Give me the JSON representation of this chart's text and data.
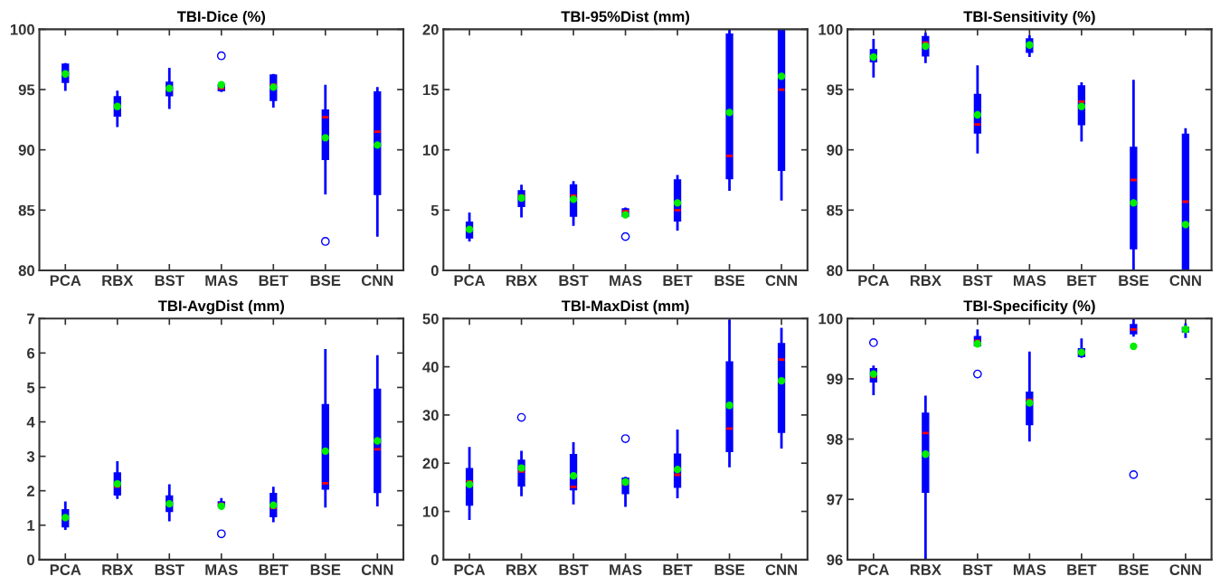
{
  "chart_data": [
    {
      "type": "box",
      "title": "TBI-Dice (%)",
      "categories": [
        "PCA",
        "RBX",
        "BST",
        "MAS",
        "BET",
        "BSE",
        "CNN"
      ],
      "ylim": [
        80,
        100
      ],
      "yticks": [
        80,
        85,
        90,
        95,
        100
      ],
      "grid": false,
      "legend": false,
      "series": [
        {
          "color": "#0000ff",
          "boxes": [
            {
              "low": 95.0,
              "q1": 95.6,
              "median": 96.4,
              "q3": 97.1,
              "high": 97.1,
              "mean": 96.3
            },
            {
              "low": 92.0,
              "q1": 92.8,
              "median": 93.7,
              "q3": 94.4,
              "high": 94.8,
              "mean": 93.6
            },
            {
              "low": 93.5,
              "q1": 94.5,
              "median": 95.0,
              "q3": 95.6,
              "high": 96.7,
              "mean": 95.1
            },
            {
              "low": 94.9,
              "q1": 94.9,
              "median": 95.1,
              "q3": 95.4,
              "high": 95.4,
              "mean": 95.4,
              "outliers": [
                97.8
              ]
            },
            {
              "low": 93.6,
              "q1": 94.1,
              "median": 95.4,
              "q3": 96.2,
              "high": 96.2,
              "mean": 95.2
            },
            {
              "low": 86.4,
              "q1": 89.2,
              "median": 92.7,
              "q3": 93.3,
              "high": 95.3,
              "mean": 91.0,
              "outliers": [
                82.4
              ]
            },
            {
              "low": 82.9,
              "q1": 86.3,
              "median": 91.5,
              "q3": 94.8,
              "high": 95.1,
              "mean": 90.4
            }
          ]
        }
      ]
    },
    {
      "type": "box",
      "title": "TBI-95%Dist (mm)",
      "categories": [
        "PCA",
        "RBX",
        "BST",
        "MAS",
        "BET",
        "BSE",
        "CNN"
      ],
      "ylim": [
        0,
        20
      ],
      "yticks": [
        0,
        5,
        10,
        15,
        20
      ],
      "grid": false,
      "legend": false,
      "series": [
        {
          "color": "#0000ff",
          "boxes": [
            {
              "low": 2.5,
              "q1": 2.7,
              "median": 3.4,
              "q3": 4.0,
              "high": 4.7,
              "mean": 3.4
            },
            {
              "low": 4.5,
              "q1": 5.3,
              "median": 6.2,
              "q3": 6.6,
              "high": 7.0,
              "mean": 6.0
            },
            {
              "low": 3.8,
              "q1": 4.5,
              "median": 6.2,
              "q3": 7.1,
              "high": 7.3,
              "mean": 5.9
            },
            {
              "low": 4.5,
              "q1": 4.5,
              "median": 4.9,
              "q3": 5.1,
              "high": 5.1,
              "mean": 4.6,
              "outliers": [
                2.8
              ]
            },
            {
              "low": 3.4,
              "q1": 4.1,
              "median": 5.0,
              "q3": 7.5,
              "high": 7.8,
              "mean": 5.6
            },
            {
              "low": 6.7,
              "q1": 7.6,
              "median": 9.5,
              "q3": 19.6,
              "high": 20,
              "mean": 13.1
            },
            {
              "low": 5.9,
              "q1": 8.3,
              "median": 15.0,
              "q3": 20,
              "high": 20,
              "mean": 16.1
            }
          ]
        }
      ]
    },
    {
      "type": "box",
      "title": "TBI-Sensitivity (%)",
      "categories": [
        "PCA",
        "RBX",
        "BST",
        "MAS",
        "BET",
        "BSE",
        "CNN"
      ],
      "ylim": [
        80,
        100
      ],
      "yticks": [
        80,
        85,
        90,
        95,
        100
      ],
      "grid": false,
      "legend": false,
      "series": [
        {
          "color": "#0000ff",
          "boxes": [
            {
              "low": 96.1,
              "q1": 97.3,
              "median": 97.8,
              "q3": 98.3,
              "high": 99.1,
              "mean": 97.7
            },
            {
              "low": 97.3,
              "q1": 97.8,
              "median": 98.9,
              "q3": 99.4,
              "high": 99.6,
              "mean": 98.6
            },
            {
              "low": 89.8,
              "q1": 91.4,
              "median": 92.1,
              "q3": 94.6,
              "high": 96.9,
              "mean": 92.9
            },
            {
              "low": 97.8,
              "q1": 98.1,
              "median": 98.7,
              "q3": 99.2,
              "high": 99.4,
              "mean": 98.7
            },
            {
              "low": 90.8,
              "q1": 92.1,
              "median": 94.0,
              "q3": 95.3,
              "high": 95.5,
              "mean": 93.6
            },
            {
              "low": 80,
              "q1": 81.8,
              "median": 87.5,
              "q3": 90.2,
              "high": 95.7,
              "mean": 85.6
            },
            {
              "low": 80,
              "q1": 80,
              "median": 85.7,
              "q3": 91.3,
              "high": 91.7,
              "mean": 83.8
            }
          ]
        }
      ]
    },
    {
      "type": "box",
      "title": "TBI-AvgDist (mm)",
      "categories": [
        "PCA",
        "RBX",
        "BST",
        "MAS",
        "BET",
        "BSE",
        "CNN"
      ],
      "ylim": [
        0,
        7
      ],
      "yticks": [
        0,
        1,
        2,
        3,
        4,
        5,
        6,
        7
      ],
      "grid": false,
      "legend": false,
      "series": [
        {
          "color": "#0000ff",
          "boxes": [
            {
              "low": 0.9,
              "q1": 0.95,
              "median": 1.2,
              "q3": 1.45,
              "high": 1.65,
              "mean": 1.22
            },
            {
              "low": 1.8,
              "q1": 1.88,
              "median": 2.12,
              "q3": 2.52,
              "high": 2.82,
              "mean": 2.2
            },
            {
              "low": 1.15,
              "q1": 1.4,
              "median": 1.6,
              "q3": 1.85,
              "high": 2.15,
              "mean": 1.62
            },
            {
              "low": 1.55,
              "q1": 1.55,
              "median": 1.62,
              "q3": 1.68,
              "high": 1.75,
              "mean": 1.55,
              "outliers": [
                0.75
              ]
            },
            {
              "low": 1.12,
              "q1": 1.25,
              "median": 1.5,
              "q3": 1.92,
              "high": 2.08,
              "mean": 1.58
            },
            {
              "low": 1.55,
              "q1": 2.05,
              "median": 2.22,
              "q3": 4.5,
              "high": 6.08,
              "mean": 3.15
            },
            {
              "low": 1.58,
              "q1": 1.95,
              "median": 3.2,
              "q3": 4.95,
              "high": 5.9,
              "mean": 3.45
            }
          ]
        }
      ]
    },
    {
      "type": "box",
      "title": "TBI-MaxDist (mm)",
      "categories": [
        "PCA",
        "RBX",
        "BST",
        "MAS",
        "BET",
        "BSE",
        "CNN"
      ],
      "ylim": [
        0,
        50
      ],
      "yticks": [
        0,
        10,
        20,
        30,
        40,
        50
      ],
      "grid": false,
      "legend": false,
      "series": [
        {
          "color": "#0000ff",
          "boxes": [
            {
              "low": 8.5,
              "q1": 11.3,
              "median": 16.2,
              "q3": 18.9,
              "high": 23.1,
              "mean": 15.6
            },
            {
              "low": 13.4,
              "q1": 15.3,
              "median": 18.3,
              "q3": 20.6,
              "high": 22.3,
              "mean": 19.0,
              "outliers": [
                29.5
              ]
            },
            {
              "low": 11.7,
              "q1": 14.5,
              "median": 15.1,
              "q3": 21.8,
              "high": 24.1,
              "mean": 17.4
            },
            {
              "low": 11.2,
              "q1": 13.7,
              "median": 15.7,
              "q3": 16.9,
              "high": 16.9,
              "mean": 16.1,
              "outliers": [
                25.1
              ]
            },
            {
              "low": 13.0,
              "q1": 15.0,
              "median": 17.6,
              "q3": 21.9,
              "high": 26.7,
              "mean": 18.7
            },
            {
              "low": 19.4,
              "q1": 22.4,
              "median": 27.2,
              "q3": 41.0,
              "high": 49.5,
              "mean": 32.0
            },
            {
              "low": 23.3,
              "q1": 26.4,
              "median": 41.5,
              "q3": 44.8,
              "high": 47.8,
              "mean": 37.1
            }
          ]
        }
      ]
    },
    {
      "type": "box",
      "title": "TBI-Specificity (%)",
      "categories": [
        "PCA",
        "RBX",
        "BST",
        "MAS",
        "BET",
        "BSE",
        "CNN"
      ],
      "ylim": [
        96,
        100
      ],
      "yticks": [
        96,
        97,
        98,
        99,
        100
      ],
      "grid": false,
      "legend": false,
      "series": [
        {
          "color": "#0000ff",
          "boxes": [
            {
              "low": 98.75,
              "q1": 98.95,
              "median": 99.03,
              "q3": 99.17,
              "high": 99.2,
              "mean": 99.08,
              "outliers": [
                99.6
              ]
            },
            {
              "low": 96,
              "q1": 97.12,
              "median": 98.1,
              "q3": 98.43,
              "high": 98.7,
              "mean": 97.75
            },
            {
              "low": 99.55,
              "q1": 99.55,
              "median": 99.63,
              "q3": 99.7,
              "high": 99.8,
              "mean": 99.58,
              "outliers": [
                99.08
              ]
            },
            {
              "low": 97.98,
              "q1": 98.24,
              "median": 98.65,
              "q3": 98.78,
              "high": 99.43,
              "mean": 98.6
            },
            {
              "low": 99.37,
              "q1": 99.37,
              "median": 99.42,
              "q3": 99.5,
              "high": 99.65,
              "mean": 99.44
            },
            {
              "low": 99.72,
              "q1": 99.75,
              "median": 99.82,
              "q3": 99.9,
              "high": 100,
              "mean": 99.54,
              "outliers": [
                97.41
              ]
            },
            {
              "low": 99.7,
              "q1": 99.78,
              "median": 99.81,
              "q3": 99.85,
              "high": 99.9,
              "mean": 99.82
            }
          ]
        }
      ]
    }
  ]
}
